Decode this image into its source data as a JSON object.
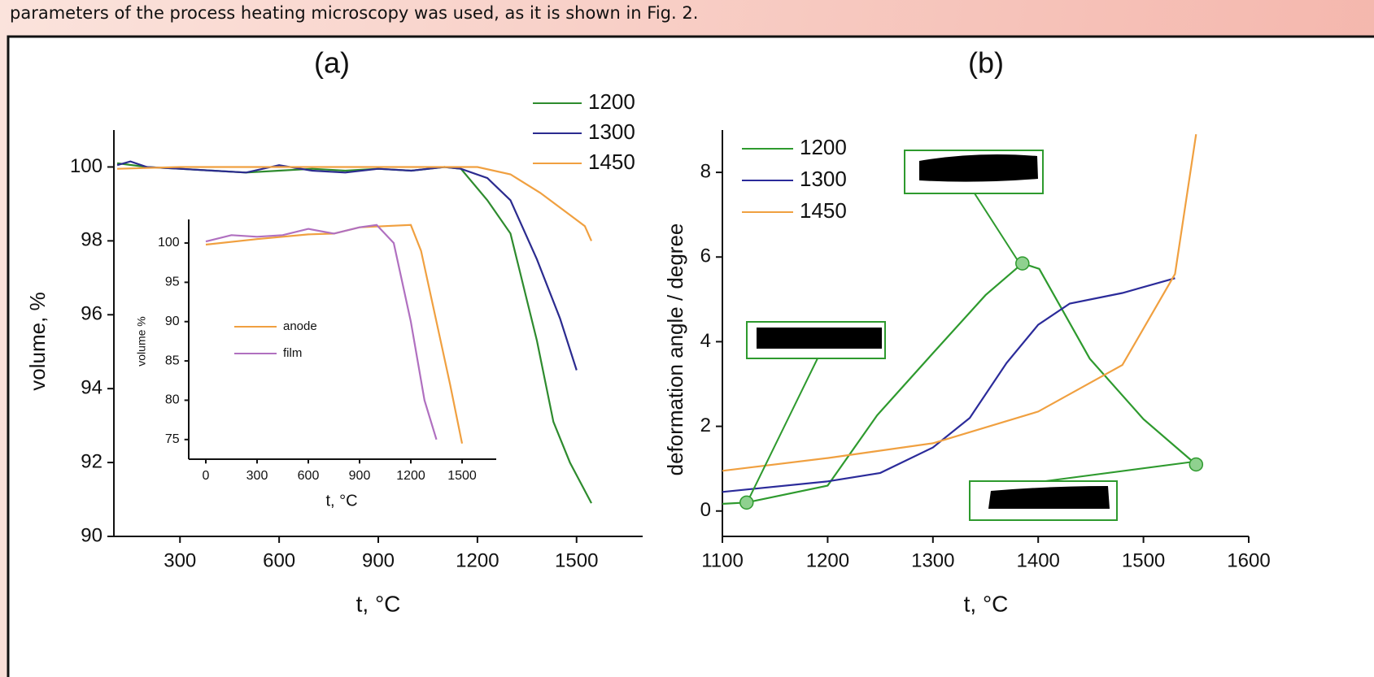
{
  "header": {
    "text": "parameters of the process heating microscopy was used, as it is shown in Fig. 2."
  },
  "chart_data": [
    {
      "type": "line",
      "title": "(a)",
      "x_label": "t, °C",
      "y_label": "volume, %",
      "xlim": [
        100,
        1700
      ],
      "ylim": [
        90,
        101
      ],
      "xticks": [
        300,
        600,
        900,
        1200,
        1500
      ],
      "yticks": [
        90,
        92,
        94,
        96,
        98,
        100
      ],
      "legend": "top-right",
      "series": [
        {
          "name": "1200",
          "color": "#2e8b2e",
          "x": [
            110,
            200,
            300,
            400,
            500,
            600,
            700,
            800,
            900,
            1000,
            1100,
            1150,
            1230,
            1300,
            1380,
            1430,
            1480,
            1545
          ],
          "values": [
            100.1,
            100,
            99.95,
            99.9,
            99.85,
            99.9,
            99.95,
            99.9,
            99.95,
            99.9,
            100,
            99.95,
            99.1,
            98.2,
            95.3,
            93.1,
            92,
            90.9
          ]
        },
        {
          "name": "1300",
          "color": "#2b2b8f",
          "x": [
            110,
            150,
            200,
            300,
            400,
            500,
            600,
            700,
            800,
            900,
            1000,
            1100,
            1150,
            1230,
            1300,
            1380,
            1450,
            1500
          ],
          "values": [
            100.05,
            100.15,
            100,
            99.95,
            99.9,
            99.85,
            100.05,
            99.9,
            99.85,
            99.95,
            99.9,
            100,
            99.95,
            99.7,
            99.1,
            97.5,
            95.9,
            94.5
          ]
        },
        {
          "name": "1450",
          "color": "#f0a040",
          "x": [
            110,
            300,
            600,
            900,
            1200,
            1300,
            1390,
            1480,
            1525,
            1545
          ],
          "values": [
            99.95,
            100,
            100,
            100,
            100,
            99.8,
            99.3,
            98.7,
            98.4,
            98
          ]
        }
      ]
    },
    {
      "type": "line",
      "x_label": "t, °C",
      "y_label": "volume %",
      "xlim": [
        -100,
        1700
      ],
      "ylim": [
        72.5,
        103
      ],
      "xticks": [
        0,
        300,
        600,
        900,
        1200,
        1500
      ],
      "yticks": [
        75,
        80,
        85,
        90,
        95,
        100
      ],
      "legend": "center-left",
      "series": [
        {
          "name": "anode",
          "color": "#f0a040",
          "x": [
            0,
            300,
            600,
            750,
            900,
            1000,
            1200,
            1260,
            1350,
            1430,
            1500
          ],
          "values": [
            99.8,
            100.5,
            101.1,
            101.2,
            102,
            102.1,
            102.3,
            99,
            90,
            82,
            74.5
          ]
        },
        {
          "name": "film",
          "color": "#b070c0",
          "x": [
            0,
            150,
            300,
            450,
            600,
            750,
            900,
            1000,
            1100,
            1200,
            1280,
            1350
          ],
          "values": [
            100.2,
            101,
            100.8,
            101,
            101.8,
            101.2,
            102,
            102.3,
            100,
            90,
            80,
            75
          ]
        }
      ]
    },
    {
      "type": "line",
      "title": "(b)",
      "x_label": "t, °C",
      "y_label": "deformation angle / degree",
      "xlim": [
        1100,
        1600
      ],
      "ylim": [
        -0.6,
        9
      ],
      "xticks": [
        1100,
        1200,
        1300,
        1400,
        1500,
        1600
      ],
      "yticks": [
        0,
        2,
        4,
        6,
        8
      ],
      "legend": "top-left",
      "series": [
        {
          "name": "1200",
          "color": "#2e9a2e",
          "x": [
            1100,
            1123,
            1200,
            1247,
            1299,
            1350,
            1385,
            1401,
            1449,
            1500,
            1550
          ],
          "values": [
            0.17,
            0.2,
            0.6,
            2.26,
            3.7,
            5.1,
            5.85,
            5.72,
            3.6,
            2.17,
            1.1
          ]
        },
        {
          "name": "1300",
          "color": "#2b2b9a",
          "x": [
            1100,
            1200,
            1250,
            1300,
            1335,
            1370,
            1400,
            1430,
            1480,
            1530
          ],
          "values": [
            0.45,
            0.7,
            0.9,
            1.5,
            2.2,
            3.5,
            4.4,
            4.9,
            5.15,
            5.5
          ]
        },
        {
          "name": "1450",
          "color": "#f0a040",
          "x": [
            1100,
            1200,
            1300,
            1400,
            1480,
            1530,
            1550
          ],
          "values": [
            0.95,
            1.25,
            1.6,
            2.35,
            3.45,
            5.6,
            8.9
          ]
        }
      ],
      "highlight_points": {
        "color": "#8fd18f",
        "x": [
          1123,
          1385,
          1550
        ],
        "values": [
          0.2,
          5.85,
          1.1
        ]
      }
    }
  ]
}
